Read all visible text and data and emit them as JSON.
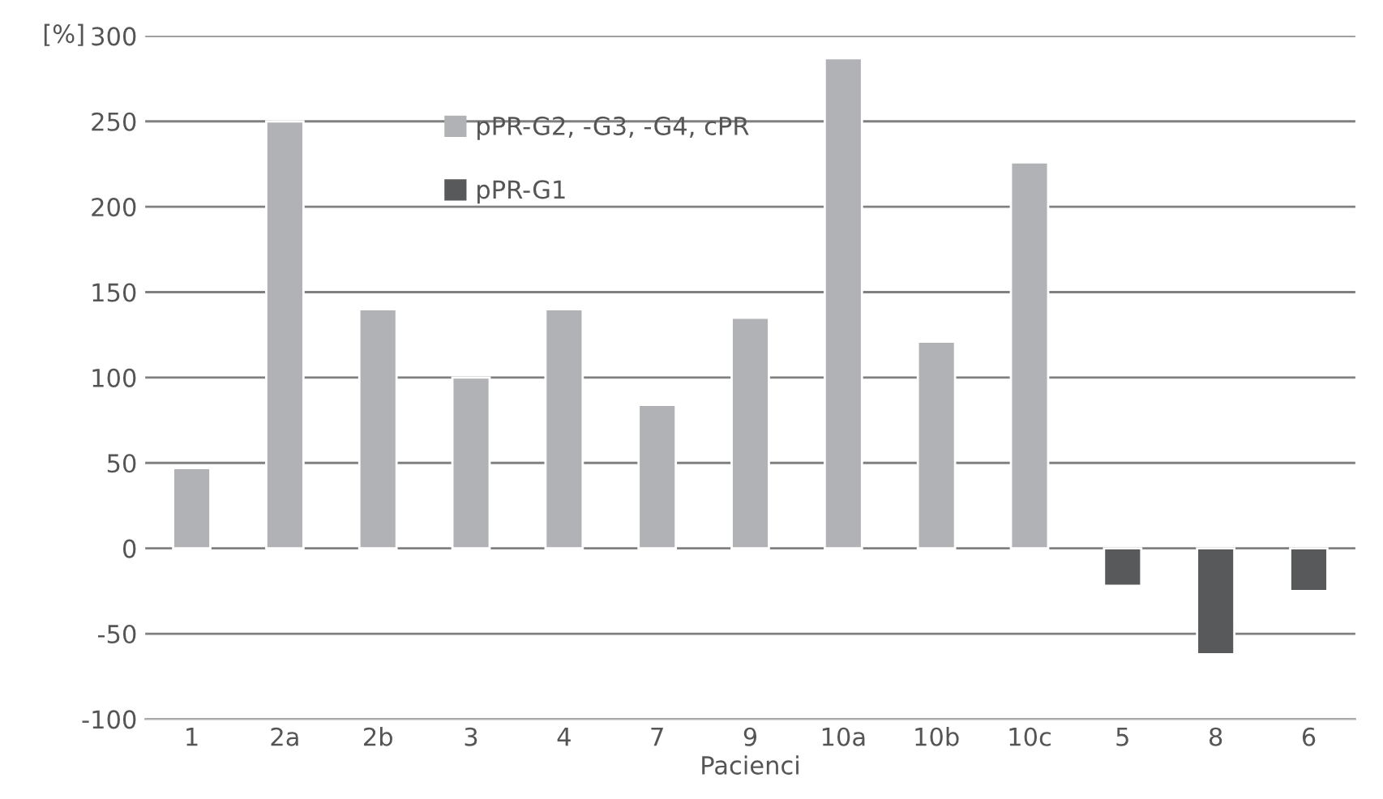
{
  "chart_data": {
    "type": "bar",
    "xlabel": "Pacienci",
    "ylabel": "[%]",
    "categories": [
      "1",
      "2a",
      "2b",
      "3",
      "4",
      "7",
      "9",
      "10a",
      "10b",
      "10c",
      "5",
      "8",
      "6"
    ],
    "series": [
      {
        "name": "pPR-G2, -G3, -G4, cPR",
        "color": "#b1b2b5",
        "values": [
          47,
          250,
          140,
          100,
          140,
          84,
          135,
          287,
          121,
          226,
          null,
          null,
          null
        ]
      },
      {
        "name": "pPR-G1",
        "color": "#58595b",
        "values": [
          null,
          null,
          null,
          null,
          null,
          null,
          null,
          null,
          null,
          null,
          -22,
          -62,
          -25
        ]
      }
    ],
    "ylim": [
      -100,
      300
    ],
    "yticks": [
      -100,
      -50,
      0,
      50,
      100,
      150,
      200,
      250,
      300
    ],
    "grid": "y",
    "legend": "top left"
  }
}
